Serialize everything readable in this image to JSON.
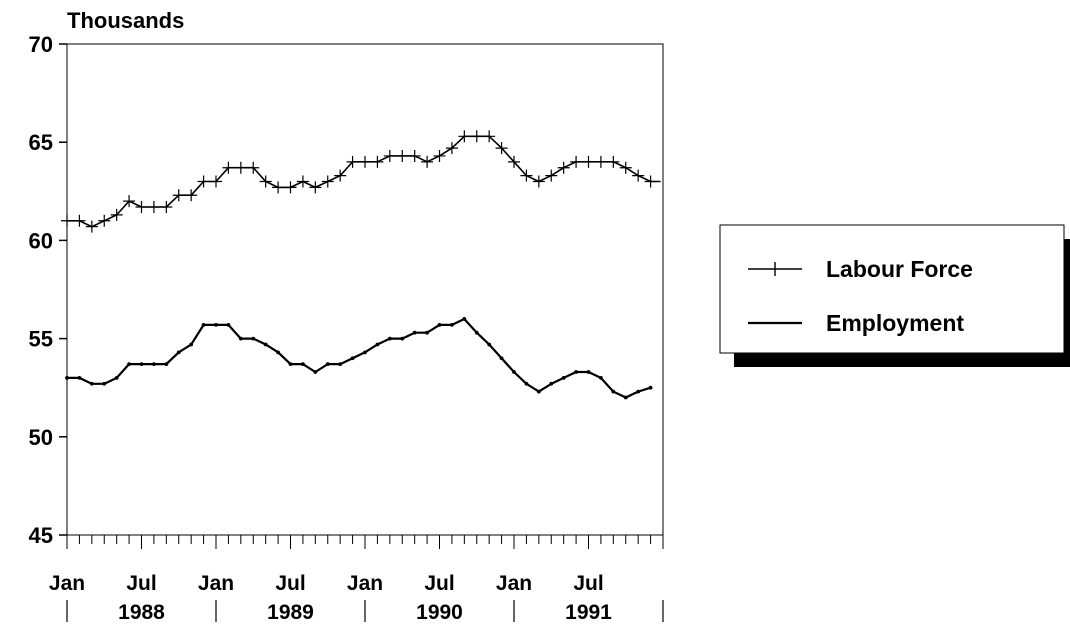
{
  "chart_data": {
    "type": "line",
    "y_title": "Thousands",
    "ylim": [
      45,
      70
    ],
    "y_ticks": [
      45,
      50,
      55,
      60,
      65,
      70
    ],
    "x_range": [
      0,
      48
    ],
    "x_month_labels": [
      "Jan",
      "Jul",
      "Jan",
      "Jul",
      "Jan",
      "Jul",
      "Jan",
      "Jul"
    ],
    "x_year_labels": [
      "1988",
      "1989",
      "1990",
      "1991"
    ],
    "grid": false,
    "legend_position": "right",
    "series": [
      {
        "name": "Labour Force",
        "marker": "plus",
        "values": [
          61.0,
          61.0,
          60.7,
          61.0,
          61.3,
          62.0,
          61.7,
          61.7,
          61.7,
          62.3,
          62.3,
          63.0,
          63.0,
          63.7,
          63.7,
          63.7,
          63.0,
          62.7,
          62.7,
          63.0,
          62.7,
          63.0,
          63.3,
          64.0,
          64.0,
          64.0,
          64.3,
          64.3,
          64.3,
          64.0,
          64.3,
          64.7,
          65.3,
          65.3,
          65.3,
          64.7,
          64.0,
          63.3,
          63.0,
          63.3,
          63.7,
          64.0,
          64.0,
          64.0,
          64.0,
          63.7,
          63.3,
          63.0
        ]
      },
      {
        "name": "Employment",
        "marker": "dot",
        "values": [
          53.0,
          53.0,
          52.7,
          52.7,
          53.0,
          53.7,
          53.7,
          53.7,
          53.7,
          54.3,
          54.7,
          55.7,
          55.7,
          55.7,
          55.0,
          55.0,
          54.7,
          54.3,
          53.7,
          53.7,
          53.3,
          53.7,
          53.7,
          54.0,
          54.3,
          54.7,
          55.0,
          55.0,
          55.3,
          55.3,
          55.7,
          55.7,
          56.0,
          55.3,
          54.7,
          54.0,
          53.3,
          52.7,
          52.3,
          52.7,
          53.0,
          53.3,
          53.3,
          53.0,
          52.3,
          52.0,
          52.3,
          52.5
        ]
      }
    ]
  }
}
